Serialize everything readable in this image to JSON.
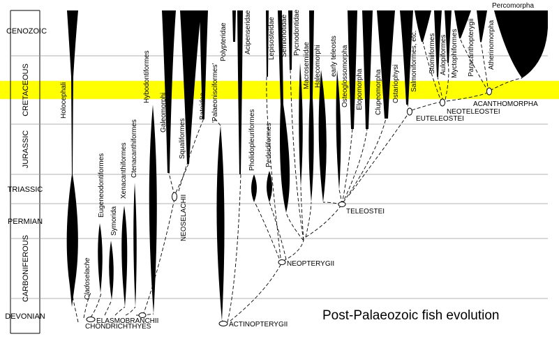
{
  "title": "Post-Palaeozoic fish evolution",
  "highlight_color": "#ffff00",
  "periods": [
    "CENOZOIC",
    "CRETACEOUS",
    "JURASSIC",
    "TRIASSIC",
    "PERMIAN",
    "CARBONIFEROUS",
    "DEVONIAN"
  ],
  "highlighted_period": "CRETACEOUS",
  "taxa": [
    "Holocephali",
    "Cladoselache",
    "Eugeneodontiformes",
    "Symorida",
    "Xenacanthiformes",
    "Ctenacanthiformes",
    "Hybodontiformes",
    "Galeomorphi",
    "Squaliformes",
    "Batoidea",
    "'Palaeonisciformes'",
    "Polypteridae",
    "Acipenseridae",
    "Pholidopleuriformes",
    "Lepisosteidae",
    "Perleidiformes",
    "Semionotidae",
    "Pycnodontidae",
    "Macrosemiidae",
    "Halecomorphi",
    "early teleosts",
    "Osteoglossomorpha",
    "Elopomorpha",
    "Clupeomorpha",
    "Ostariophysi",
    "Salmoniformes, etc.",
    "Stomiiformes",
    "Aulopiformes",
    "Myctophiformes",
    "Paracanthopterygii",
    "Atherinomorpha",
    "Percomorpha"
  ],
  "clades": [
    "CHONDRICHTHYES",
    "ELASMOBRANCHII",
    "NEOSELACHII",
    "ACTINOPTERYGII",
    "NEOPTERYGII",
    "TELEOSTEI",
    "EUTELEOSTEI",
    "NEOTELEOSTEI",
    "ACANTHOMORPHA"
  ]
}
